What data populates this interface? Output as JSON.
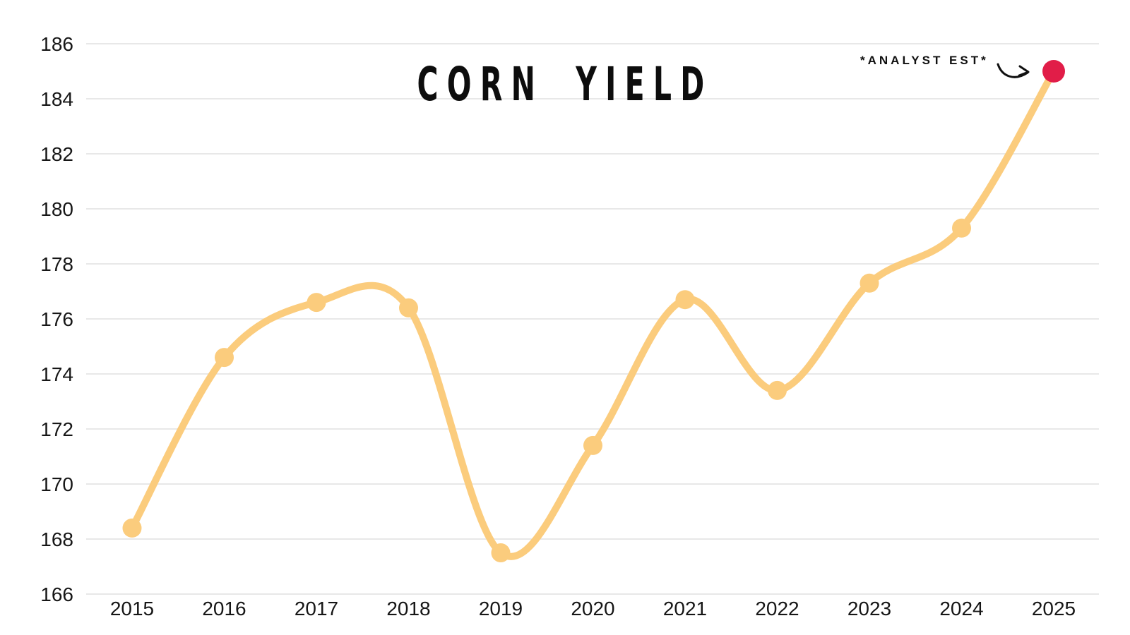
{
  "page": {
    "background": "#ffffff"
  },
  "header": {
    "title": "CORN YIELD"
  },
  "annotation": {
    "label": "*ANALYST EST*"
  },
  "colors": {
    "line": "#FBCC7D",
    "marker": "#FBCC7D",
    "estimate_marker": "#E11D48",
    "gridline": "#E4E4E4",
    "axis_text": "#161616",
    "annotation_arrow": "#111111"
  },
  "chart_data": {
    "type": "line",
    "title": "CORN YIELD",
    "x": [
      "2015",
      "2016",
      "2017",
      "2018",
      "2019",
      "2020",
      "2021",
      "2022",
      "2023",
      "2024",
      "2025"
    ],
    "values": [
      168.4,
      174.6,
      176.6,
      176.4,
      167.5,
      171.4,
      176.7,
      173.4,
      177.3,
      179.3,
      185.0
    ],
    "series": [
      {
        "name": "Corn yield",
        "values": [
          168.4,
          174.6,
          176.6,
          176.4,
          167.5,
          171.4,
          176.7,
          173.4,
          177.3,
          179.3,
          185.0
        ]
      }
    ],
    "xlabel": "",
    "ylabel": "",
    "ylim": [
      166,
      186
    ],
    "ytick_step": 2,
    "yticks": [
      166,
      168,
      170,
      172,
      174,
      176,
      178,
      180,
      182,
      184,
      186
    ],
    "grid": "horizontal-only",
    "legend": "none",
    "smoothing": "spline",
    "annotations": [
      {
        "text": "*ANALYST EST*",
        "target_x": "2025",
        "target_y": 185.0,
        "style": "curved-arrow",
        "point_color": "#E11D48"
      }
    ]
  }
}
